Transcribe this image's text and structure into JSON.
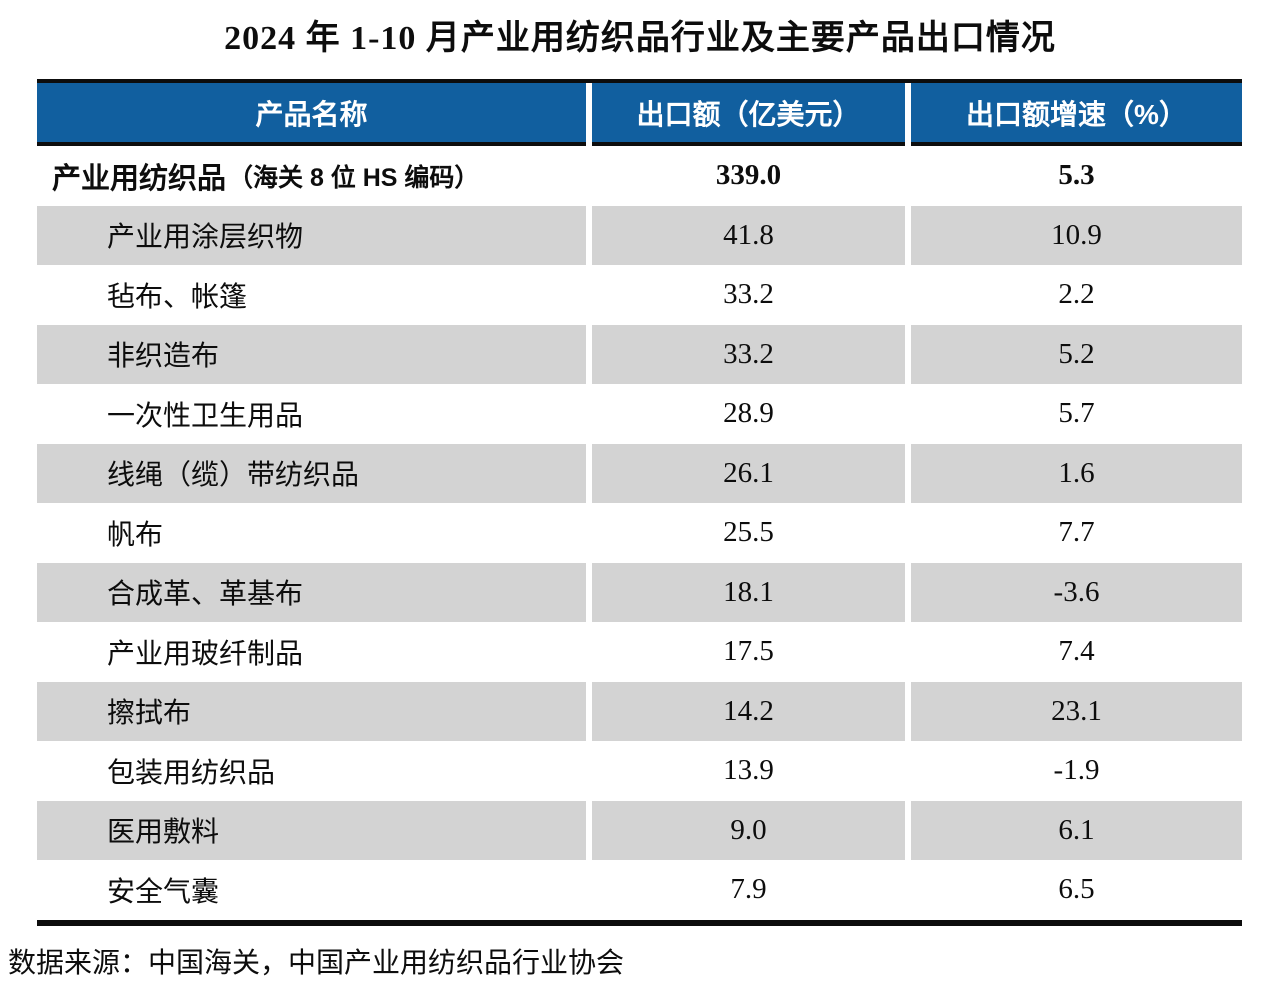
{
  "title": "2024 年 1-10 月产业用纺织品行业及主要产品出口情况",
  "table": {
    "columns": [
      "产品名称",
      "出口额（亿美元）",
      "出口额增速（%）"
    ],
    "total_row": {
      "name": "产业用纺织品",
      "note": "（海关 8 位 HS 编码）",
      "export_value": "339.0",
      "growth": "5.3"
    },
    "rows": [
      {
        "name": "产业用涂层织物",
        "export_value": "41.8",
        "growth": "10.9"
      },
      {
        "name": "毡布、帐篷",
        "export_value": "33.2",
        "growth": "2.2"
      },
      {
        "name": "非织造布",
        "export_value": "33.2",
        "growth": "5.2"
      },
      {
        "name": "一次性卫生用品",
        "export_value": "28.9",
        "growth": "5.7"
      },
      {
        "name": "线绳（缆）带纺织品",
        "export_value": "26.1",
        "growth": "1.6"
      },
      {
        "name": "帆布",
        "export_value": "25.5",
        "growth": "7.7"
      },
      {
        "name": "合成革、革基布",
        "export_value": "18.1",
        "growth": "-3.6"
      },
      {
        "name": "产业用玻纤制品",
        "export_value": "17.5",
        "growth": "7.4"
      },
      {
        "name": "擦拭布",
        "export_value": "14.2",
        "growth": "23.1"
      },
      {
        "name": "包装用纺织品",
        "export_value": "13.9",
        "growth": "-1.9"
      },
      {
        "name": "医用敷料",
        "export_value": "9.0",
        "growth": "6.1"
      },
      {
        "name": "安全气囊",
        "export_value": "7.9",
        "growth": "6.5"
      }
    ]
  },
  "footer": {
    "source": "数据来源：中国海关，中国产业用纺织品行业协会"
  },
  "colors": {
    "header_bg": "#115F9F",
    "row_alt_bg": "#D3D3D3",
    "border": "#0D0D0D",
    "header_text": "#FFFFFF"
  },
  "chart_data": {
    "type": "table",
    "title": "2024 年 1-10 月产业用纺织品行业及主要产品出口情况",
    "columns": [
      "产品名称",
      "出口额（亿美元）",
      "出口额增速（%）"
    ],
    "rows": [
      [
        "产业用纺织品（海关 8 位 HS 编码）",
        339.0,
        5.3
      ],
      [
        "产业用涂层织物",
        41.8,
        10.9
      ],
      [
        "毡布、帐篷",
        33.2,
        2.2
      ],
      [
        "非织造布",
        33.2,
        5.2
      ],
      [
        "一次性卫生用品",
        28.9,
        5.7
      ],
      [
        "线绳（缆）带纺织品",
        26.1,
        1.6
      ],
      [
        "帆布",
        25.5,
        7.7
      ],
      [
        "合成革、革基布",
        18.1,
        -3.6
      ],
      [
        "产业用玻纤制品",
        17.5,
        7.4
      ],
      [
        "擦拭布",
        14.2,
        23.1
      ],
      [
        "包装用纺织品",
        13.9,
        -1.9
      ],
      [
        "医用敷料",
        9.0,
        6.1
      ],
      [
        "安全气囊",
        7.9,
        6.5
      ]
    ],
    "source": "数据来源：中国海关，中国产业用纺织品行业协会"
  }
}
